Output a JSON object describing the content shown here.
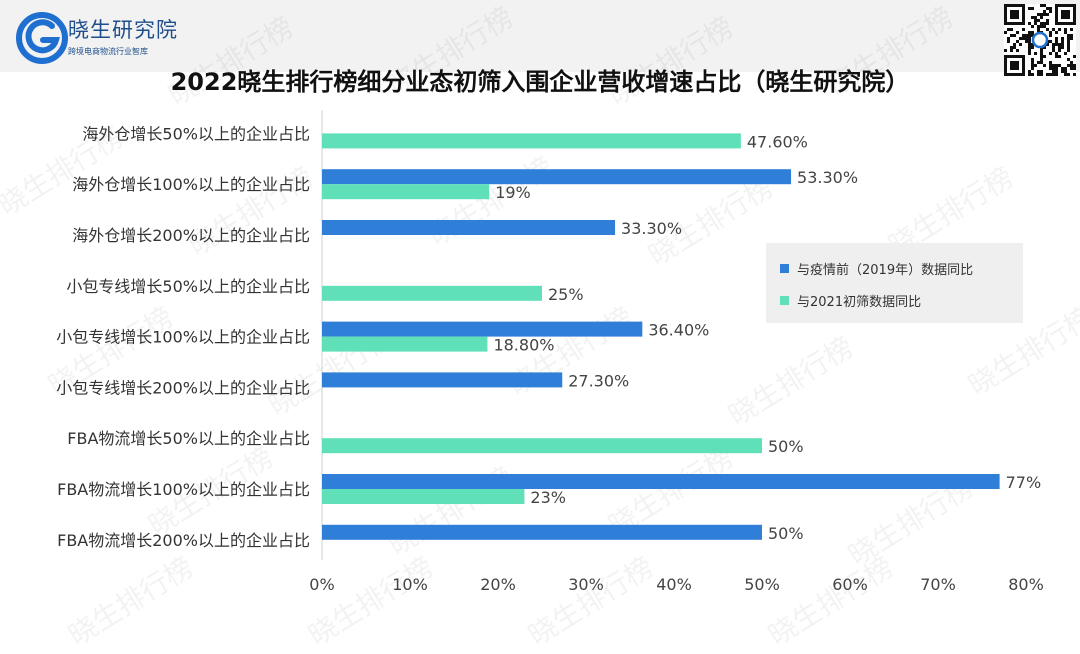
{
  "header": {
    "logo_name": "晓生研究院",
    "logo_sub": "跨境电商物流行业智库"
  },
  "watermark_text": "晓生排行榜",
  "colors": {
    "series1": "#2f7ed8",
    "series2": "#5fe0b8"
  },
  "chart_data": {
    "type": "bar",
    "orientation": "horizontal",
    "title": "2022晓生排行榜细分业态初筛入围企业营收增速占比（晓生研究院）",
    "categories": [
      "海外仓增长50%以上的企业占比",
      "海外仓增长100%以上的企业占比",
      "海外仓增长200%以上的企业占比",
      "小包专线增长50%以上的企业占比",
      "小包专线增长100%以上的企业占比",
      "小包专线增长200%以上的企业占比",
      "FBA物流增长50%以上的企业占比",
      "FBA物流增长100%以上的企业占比",
      "FBA物流增长200%以上的企业占比"
    ],
    "series": [
      {
        "name": "与疫情前（2019年）数据同比",
        "values": [
          null,
          53.3,
          33.3,
          null,
          36.4,
          27.3,
          null,
          77,
          50
        ],
        "labels": [
          "",
          "53.30%",
          "33.30%",
          "",
          "36.40%",
          "27.30%",
          "",
          "77%",
          "50%"
        ]
      },
      {
        "name": "与2021初筛数据同比",
        "values": [
          47.6,
          19,
          null,
          25,
          18.8,
          null,
          50,
          23,
          null
        ],
        "labels": [
          "47.60%",
          "19%",
          "",
          "25%",
          "18.80%",
          "",
          "50%",
          "23%",
          ""
        ]
      }
    ],
    "xlim": [
      0,
      80
    ],
    "xticks": [
      "0%",
      "10%",
      "20%",
      "30%",
      "40%",
      "50%",
      "60%",
      "70%",
      "80%"
    ],
    "grid": false,
    "legend_position": "right"
  }
}
